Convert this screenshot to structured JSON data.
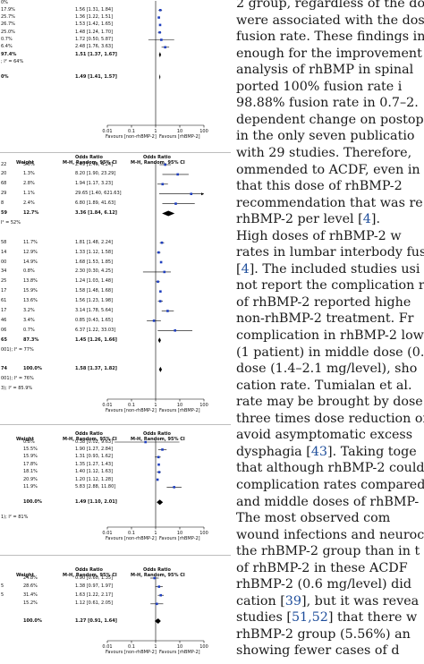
{
  "figure": {
    "panel_a": {
      "header": {
        "odds_ratio": "",
        "method": ""
      },
      "rows": [
        {
          "label": "0%",
          "weight": "",
          "ci": "",
          "or": null,
          "lo": null,
          "hi": null,
          "bold": false
        },
        {
          "label": "17.9%",
          "weight": "",
          "ci": "1.56 [1.31, 1.84]",
          "or": 1.56,
          "lo": 1.31,
          "hi": 1.84,
          "bold": false
        },
        {
          "label": "25.7%",
          "weight": "",
          "ci": "1.36 [1.22, 1.51]",
          "or": 1.36,
          "lo": 1.22,
          "hi": 1.51,
          "bold": false
        },
        {
          "label": "26.7%",
          "weight": "",
          "ci": "1.53 [1.42, 1.65]",
          "or": 1.53,
          "lo": 1.42,
          "hi": 1.65,
          "bold": false
        },
        {
          "label": "25.0%",
          "weight": "",
          "ci": "1.48 [1.24, 1.70]",
          "or": 1.48,
          "lo": 1.24,
          "hi": 1.7,
          "bold": false
        },
        {
          "label": "0.7%",
          "weight": "",
          "ci": "1.72 [0.50, 5.87]",
          "or": 1.72,
          "lo": 0.5,
          "hi": 5.87,
          "bold": false
        },
        {
          "label": "6.4%",
          "weight": "",
          "ci": "2.48 [1.76, 3.63]",
          "or": 2.48,
          "lo": 1.76,
          "hi": 3.63,
          "bold": false
        },
        {
          "label": "97.4%",
          "weight": "",
          "ci": "1.51 [1.37, 1.67]",
          "or": 1.51,
          "lo": 1.37,
          "hi": 1.67,
          "bold": true
        },
        {
          "label": "; I² = 64%",
          "weight": "",
          "ci": "",
          "or": null,
          "lo": null,
          "hi": null,
          "bold": false
        },
        {
          "label": "",
          "weight": "",
          "ci": "",
          "or": null,
          "lo": null,
          "hi": null,
          "bold": false
        },
        {
          "label": "0%",
          "weight": "",
          "ci": "1.49 [1.41, 1.57]",
          "or": 1.49,
          "lo": 1.41,
          "hi": 1.57,
          "bold": true
        }
      ],
      "axis": {
        "ticks": [
          "0.01",
          "0.1",
          "1",
          "10",
          "100"
        ],
        "left_label": "Favours [non-rhBMP-2]",
        "right_label": "Favours [rhBMP-2]"
      }
    },
    "panel_b": {
      "header": {
        "odds_ratio": "Odds Ratio",
        "method": "M-H, Random, 95% CI",
        "weight_col": "Weight"
      },
      "rows": [
        {
          "label": "22",
          "weight": "5.0%",
          "ci": "2.49 [1.46, 4.24]",
          "or": 2.49,
          "lo": 1.46,
          "hi": 4.24,
          "bold": false
        },
        {
          "label": "20",
          "weight": "1.3%",
          "ci": "8.20 [1.90, 23.29]",
          "or": 8.2,
          "lo": 1.9,
          "hi": 23.29,
          "bold": false
        },
        {
          "label": "68",
          "weight": "2.8%",
          "ci": "1.94 [1.17, 3.23]",
          "or": 1.94,
          "lo": 1.17,
          "hi": 3.23,
          "bold": false
        },
        {
          "label": "29",
          "weight": "1.1%",
          "ci": "29.65 [1.40, 621.63]",
          "or": 29.65,
          "lo": 1.4,
          "hi": 621.63,
          "bold": false
        },
        {
          "label": "8",
          "weight": "2.4%",
          "ci": "6.80 [1.89, 41.63]",
          "or": 6.8,
          "lo": 1.89,
          "hi": 41.63,
          "bold": false
        },
        {
          "label": "59",
          "weight": "12.7%",
          "ci": "3.36 [1.84, 6.12]",
          "or": 3.36,
          "lo": 1.84,
          "hi": 6.12,
          "bold": true
        },
        {
          "label": "I² = 52%",
          "weight": "",
          "ci": "",
          "or": null,
          "lo": null,
          "hi": null,
          "bold": false
        },
        {
          "label": "",
          "weight": "",
          "ci": "",
          "or": null,
          "lo": null,
          "hi": null,
          "bold": false
        },
        {
          "label": "58",
          "weight": "11.7%",
          "ci": "1.81 [1.48, 2.24]",
          "or": 1.81,
          "lo": 1.48,
          "hi": 2.24,
          "bold": false
        },
        {
          "label": "14",
          "weight": "12.9%",
          "ci": "1.33 [1.12, 1.58]",
          "or": 1.33,
          "lo": 1.12,
          "hi": 1.58,
          "bold": false
        },
        {
          "label": "00",
          "weight": "14.9%",
          "ci": "1.68 [1.53, 1.85]",
          "or": 1.68,
          "lo": 1.53,
          "hi": 1.85,
          "bold": false
        },
        {
          "label": "34",
          "weight": "0.8%",
          "ci": "2.30 [0.30, 4.25]",
          "or": 2.3,
          "lo": 0.3,
          "hi": 4.25,
          "bold": false
        },
        {
          "label": "25",
          "weight": "13.8%",
          "ci": "1.24 [1.03, 1.48]",
          "or": 1.24,
          "lo": 1.03,
          "hi": 1.48,
          "bold": false
        },
        {
          "label": "17",
          "weight": "15.9%",
          "ci": "1.58 [1.48, 1.68]",
          "or": 1.58,
          "lo": 1.48,
          "hi": 1.68,
          "bold": false
        },
        {
          "label": "61",
          "weight": "13.6%",
          "ci": "1.56 [1.23, 1.98]",
          "or": 1.56,
          "lo": 1.23,
          "hi": 1.98,
          "bold": false
        },
        {
          "label": "17",
          "weight": "3.2%",
          "ci": "3.14 [1.78, 5.64]",
          "or": 3.14,
          "lo": 1.78,
          "hi": 5.64,
          "bold": false
        },
        {
          "label": "46",
          "weight": "3.4%",
          "ci": "0.85 [0.43, 1.65]",
          "or": 0.85,
          "lo": 0.43,
          "hi": 1.65,
          "bold": false
        },
        {
          "label": "06",
          "weight": "0.7%",
          "ci": "6.37 [1.22, 33.03]",
          "or": 6.37,
          "lo": 1.22,
          "hi": 33.03,
          "bold": false
        },
        {
          "label": "65",
          "weight": "87.3%",
          "ci": "1.45 [1.26, 1.66]",
          "or": 1.45,
          "lo": 1.26,
          "hi": 1.66,
          "bold": true
        },
        {
          "label": "001); I² = 77%",
          "weight": "",
          "ci": "",
          "or": null,
          "lo": null,
          "hi": null,
          "bold": false
        },
        {
          "label": "",
          "weight": "",
          "ci": "",
          "or": null,
          "lo": null,
          "hi": null,
          "bold": false
        },
        {
          "label": "74",
          "weight": "100.0%",
          "ci": "1.58 [1.37, 1.82]",
          "or": 1.58,
          "lo": 1.37,
          "hi": 1.82,
          "bold": true
        },
        {
          "label": "001); I² = 76%",
          "weight": "",
          "ci": "",
          "or": null,
          "lo": null,
          "hi": null,
          "bold": false
        },
        {
          "label": "3); I² = 85.9%",
          "weight": "",
          "ci": "",
          "or": null,
          "lo": null,
          "hi": null,
          "bold": false
        }
      ],
      "axis": {
        "ticks": [
          "0.01",
          "0.1",
          "1",
          "10",
          "100"
        ],
        "left_label": "Favours [non-rhBMP-2]",
        "right_label": "Favours [rhBMP-2]"
      }
    },
    "panel_c": {
      "header": {
        "odds_ratio": "Odds Ratio",
        "method": "M-H, Random, 95% CI",
        "weight_col": "Weight"
      },
      "rows": [
        {
          "label": "",
          "weight": "0.8%",
          "ci": "0.38 [0.02, 9.63]",
          "or": 0.38,
          "lo": 0.02,
          "hi": 9.63,
          "bold": false
        },
        {
          "label": "",
          "weight": "15.5%",
          "ci": "1.90 [1.27, 2.84]",
          "or": 1.9,
          "lo": 1.27,
          "hi": 2.84,
          "bold": false
        },
        {
          "label": "",
          "weight": "15.9%",
          "ci": "1.31 [0.93, 1.62]",
          "or": 1.31,
          "lo": 0.93,
          "hi": 1.62,
          "bold": false
        },
        {
          "label": "",
          "weight": "17.8%",
          "ci": "1.35 [1.27, 1.43]",
          "or": 1.35,
          "lo": 1.27,
          "hi": 1.43,
          "bold": false
        },
        {
          "label": "",
          "weight": "18.1%",
          "ci": "1.40 [1.12, 1.63]",
          "or": 1.4,
          "lo": 1.12,
          "hi": 1.63,
          "bold": false
        },
        {
          "label": "",
          "weight": "20.9%",
          "ci": "1.20 [1.12, 1.28]",
          "or": 1.2,
          "lo": 1.12,
          "hi": 1.28,
          "bold": false
        },
        {
          "label": "",
          "weight": "11.9%",
          "ci": "5.83 [2.88, 11.80]",
          "or": 5.83,
          "lo": 2.88,
          "hi": 11.8,
          "bold": false
        },
        {
          "label": "",
          "weight": "",
          "ci": "",
          "or": null,
          "lo": null,
          "hi": null,
          "bold": false
        },
        {
          "label": "",
          "weight": "100.0%",
          "ci": "1.49 [1.10, 2.01]",
          "or": 1.49,
          "lo": 1.1,
          "hi": 2.01,
          "bold": true
        },
        {
          "label": "",
          "weight": "",
          "ci": "",
          "or": null,
          "lo": null,
          "hi": null,
          "bold": false
        },
        {
          "label": "1); I² = 81%",
          "weight": "",
          "ci": "",
          "or": null,
          "lo": null,
          "hi": null,
          "bold": false
        }
      ],
      "axis": {
        "ticks": [
          "0.01",
          "0.1",
          "1",
          "10",
          "100"
        ],
        "left_label": "Favours [non-rhBMP-2]",
        "right_label": "Favours [rhBMP-2]"
      }
    },
    "panel_d": {
      "header": {
        "odds_ratio": "Odds Ratio",
        "method": "M-H, Random, 95% CI",
        "method2": "M-H, Random, 95% CI",
        "weight_col": "Weight",
        "odds_ratio2": "Odds Ratio"
      },
      "rows": [
        {
          "label": "",
          "weight": "24.8%",
          "ci": "0.90 [0.60, 1.35]",
          "or": 0.9,
          "lo": 0.6,
          "hi": 1.35,
          "bold": false
        },
        {
          "label": "5",
          "weight": "28.6%",
          "ci": "1.38 [0.97, 1.97]",
          "or": 1.38,
          "lo": 0.97,
          "hi": 1.97,
          "bold": false
        },
        {
          "label": "5",
          "weight": "31.4%",
          "ci": "1.63 [1.22, 2.17]",
          "or": 1.63,
          "lo": 1.22,
          "hi": 2.17,
          "bold": false
        },
        {
          "label": "",
          "weight": "15.2%",
          "ci": "1.12 [0.61, 2.05]",
          "or": 1.12,
          "lo": 0.61,
          "hi": 2.05,
          "bold": false
        },
        {
          "label": "",
          "weight": "",
          "ci": "",
          "or": null,
          "lo": null,
          "hi": null,
          "bold": false
        },
        {
          "label": "",
          "weight": "100.0%",
          "ci": "1.27 [0.91, 1.64]",
          "or": 1.27,
          "lo": 0.91,
          "hi": 1.64,
          "bold": true
        }
      ],
      "axis": {
        "ticks": [
          "0.01",
          "0.1",
          "1",
          "10",
          "100"
        ],
        "left_label": "Favours [non-rhBMP-2]",
        "right_label": "Favours [rhBMP-2]"
      }
    }
  },
  "article": {
    "lines": [
      {
        "segments": [
          {
            "t": "2 group, regardless of the do"
          }
        ]
      },
      {
        "segments": [
          {
            "t": "were associated with the dos"
          }
        ]
      },
      {
        "segments": [
          {
            "t": "fusion rate. These findings in"
          }
        ]
      },
      {
        "segments": [
          {
            "t": "enough for the improvement"
          }
        ]
      },
      {
        "segments": [
          {
            "t": "analysis of rhBMP in spinal"
          }
        ]
      },
      {
        "segments": [
          {
            "t": "ported 100% fusion rate i"
          }
        ]
      },
      {
        "segments": [
          {
            "t": "98.88% fusion rate in 0.7–2."
          }
        ]
      },
      {
        "segments": [
          {
            "t": "dependent change on postop"
          }
        ]
      },
      {
        "segments": [
          {
            "t": "in the only seven publicatio"
          }
        ]
      },
      {
        "segments": [
          {
            "t": "with 29 studies. Therefore,"
          }
        ]
      },
      {
        "segments": [
          {
            "t": "ommended to ACDF, even in"
          }
        ]
      },
      {
        "segments": [
          {
            "t": "that this dose of rhBMP-2"
          }
        ]
      },
      {
        "segments": [
          {
            "t": "recommendation that was re"
          }
        ]
      },
      {
        "segments": [
          {
            "t": "rhBMP-2 per level ["
          },
          {
            "t": "4",
            "link": true
          },
          {
            "t": "]."
          }
        ]
      },
      {
        "segments": [
          {
            "t": "    High doses of rhBMP-2 w"
          }
        ]
      },
      {
        "segments": [
          {
            "t": "rates in lumbar interbody fus"
          }
        ]
      },
      {
        "segments": [
          {
            "t": "["
          },
          {
            "t": "4",
            "link": true
          },
          {
            "t": "]. The included studies usi"
          }
        ]
      },
      {
        "segments": [
          {
            "t": "not report the complication ra"
          }
        ]
      },
      {
        "segments": [
          {
            "t": "of rhBMP-2 reported highe"
          }
        ]
      },
      {
        "segments": [
          {
            "t": "non-rhBMP-2 treatment. Fr"
          }
        ]
      },
      {
        "segments": [
          {
            "t": "complication in rhBMP-2 low"
          }
        ]
      },
      {
        "segments": [
          {
            "t": "(1 patient) in middle dose (0."
          }
        ]
      },
      {
        "segments": [
          {
            "t": "dose (1.4–2.1 mg/level), sho"
          }
        ]
      },
      {
        "segments": [
          {
            "t": "cation rate. Tumialan et al. "
          }
        ]
      },
      {
        "segments": [
          {
            "t": "rate may be brought by dose"
          }
        ]
      },
      {
        "segments": [
          {
            "t": "three times dose reduction of"
          }
        ]
      },
      {
        "segments": [
          {
            "t": "avoid asymptomatic excess"
          }
        ]
      },
      {
        "segments": [
          {
            "t": "dysphagia ["
          },
          {
            "t": "43",
            "link": true
          },
          {
            "t": "]. Taking toge"
          }
        ]
      },
      {
        "segments": [
          {
            "t": "that although rhBMP-2 could"
          }
        ]
      },
      {
        "segments": [
          {
            "t": "complication rates compared"
          }
        ]
      },
      {
        "segments": [
          {
            "t": "and middle doses of rhBMP-"
          }
        ]
      },
      {
        "segments": [
          {
            "t": "    The most observed com"
          }
        ]
      },
      {
        "segments": [
          {
            "t": "wound infections and neuroc"
          }
        ]
      },
      {
        "segments": [
          {
            "t": "the rhBMP-2 group than in t"
          }
        ]
      },
      {
        "segments": [
          {
            "t": "of rhBMP-2 in these ACDF"
          }
        ]
      },
      {
        "segments": [
          {
            "t": "rhBMP-2 (0.6 mg/level) did"
          }
        ]
      },
      {
        "segments": [
          {
            "t": "cation ["
          },
          {
            "t": "39",
            "link": true
          },
          {
            "t": "], but it was revea"
          }
        ]
      },
      {
        "segments": [
          {
            "t": "studies ["
          },
          {
            "t": "51,52",
            "link": true
          },
          {
            "t": "] that there w"
          }
        ]
      },
      {
        "segments": [
          {
            "t": "rhBMP-2 group (5.56%) an"
          }
        ]
      },
      {
        "segments": [
          {
            "t": "showing fewer cases of d"
          }
        ]
      }
    ]
  },
  "colors": {
    "marker": "#1f3fbf",
    "diamond": "#000000",
    "link": "#1f4e9b",
    "separator": "#bdbdbd"
  }
}
